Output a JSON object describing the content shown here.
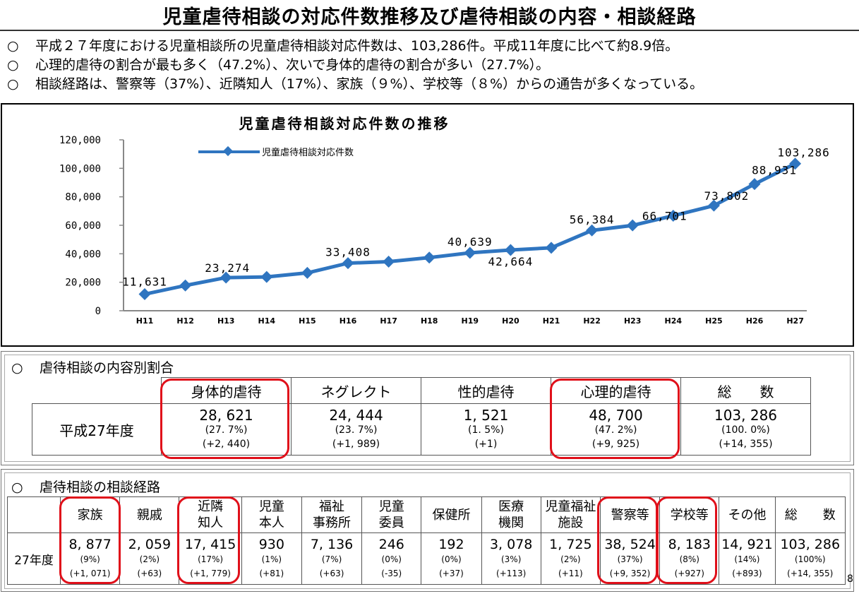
{
  "title": "児童虐待相談の対応件数推移及び虐待相談の内容・相談経路",
  "bullets": [
    {
      "marker": "○",
      "text": "平成２７年度における児童相談所の児童虐待相談対応件数は、103,286件。平成11年度に比べて約8.9倍。"
    },
    {
      "marker": "○",
      "text": "心理的虐待の割合が最も多く（47.2%）、次いで身体的虐待の割合が多い（27.7%）。"
    },
    {
      "marker": "○",
      "text": "相談経路は、警察等（37%）、近隣知人（17%）、家族（９%）、学校等（８%）からの通告が多くなっている。"
    }
  ],
  "chart_data": {
    "type": "line",
    "title": "児童虐待相談対応件数の推移",
    "categories": [
      "H11",
      "H12",
      "H13",
      "H14",
      "H15",
      "H16",
      "H17",
      "H18",
      "H19",
      "H20",
      "H21",
      "H22",
      "H23",
      "H24",
      "H25",
      "H26",
      "H27"
    ],
    "series": [
      {
        "name": "児童虐待相談対応件数",
        "values": [
          11631,
          17725,
          23274,
          23738,
          26569,
          33408,
          34472,
          37323,
          40639,
          42664,
          44211,
          56384,
          59919,
          66701,
          73802,
          88931,
          103286
        ]
      }
    ],
    "data_labels": [
      {
        "index": 0,
        "text": "11,631"
      },
      {
        "index": 2,
        "text": "23,274"
      },
      {
        "index": 5,
        "text": "33,408"
      },
      {
        "index": 8,
        "text": "40,639"
      },
      {
        "index": 9,
        "text": "42,664"
      },
      {
        "index": 11,
        "text": "56,384"
      },
      {
        "index": 13,
        "text": "66,701"
      },
      {
        "index": 14,
        "text": "73,802"
      },
      {
        "index": 15,
        "text": "88,931"
      },
      {
        "index": 16,
        "text": "103,286"
      }
    ],
    "yticks": [
      "0",
      "20,000",
      "40,000",
      "60,000",
      "80,000",
      "100,000",
      "120,000"
    ],
    "ylim": [
      0,
      120000
    ],
    "xlabel": "",
    "ylabel": "",
    "legend": "top-left",
    "grid": false,
    "color": "#2f75c0"
  },
  "content_section": {
    "marker": "○",
    "title": "虐待相談の内容別割合",
    "row_label": "平成27年度",
    "columns": [
      {
        "header": "身体的虐待",
        "value": "28, 621",
        "pct": "(27. 7%)",
        "diff": "(+2, 440)"
      },
      {
        "header": "ネグレクト",
        "value": "24, 444",
        "pct": "(23. 7%)",
        "diff": "(+1, 989)"
      },
      {
        "header": "性的虐待",
        "value": "1, 521",
        "pct": "(1. 5%)",
        "diff": "(+1)"
      },
      {
        "header": "心理的虐待",
        "value": "48, 700",
        "pct": "(47. 2%)",
        "diff": "(+9, 925)"
      },
      {
        "header": "総　　数",
        "value": "103, 286",
        "pct": "(100. 0%)",
        "diff": "(+14, 355)"
      }
    ]
  },
  "route_section": {
    "marker": "○",
    "title": "虐待相談の相談経路",
    "row_label": "27年度",
    "columns": [
      {
        "header": "家族",
        "value": "8, 877",
        "pct": "(9%)",
        "diff": "(+1, 071)"
      },
      {
        "header": "親戚",
        "value": "2, 059",
        "pct": "(2%)",
        "diff": "(+63)"
      },
      {
        "header": "近隣\n知人",
        "value": "17, 415",
        "pct": "(17%)",
        "diff": "(+1, 779)"
      },
      {
        "header": "児童\n本人",
        "value": "930",
        "pct": "(1%)",
        "diff": "(+81)"
      },
      {
        "header": "福祉\n事務所",
        "value": "7, 136",
        "pct": "(7%)",
        "diff": "(+63)"
      },
      {
        "header": "児童\n委員",
        "value": "246",
        "pct": "(0%)",
        "diff": "(-35)"
      },
      {
        "header": "保健所",
        "value": "192",
        "pct": "(0%)",
        "diff": "(+37)"
      },
      {
        "header": "医療\n機関",
        "value": "3, 078",
        "pct": "(3%)",
        "diff": "(+113)"
      },
      {
        "header": "児童福祉\n施設",
        "value": "1, 725",
        "pct": "(2%)",
        "diff": "(+11)"
      },
      {
        "header": "警察等",
        "value": "38, 524",
        "pct": "(37%)",
        "diff": "(+9, 352)"
      },
      {
        "header": "学校等",
        "value": "8, 183",
        "pct": "(8%)",
        "diff": "(+927)"
      },
      {
        "header": "その他",
        "value": "14, 921",
        "pct": "(14%)",
        "diff": "(+893)"
      },
      {
        "header": "総　　数",
        "value": "103, 286",
        "pct": "(100%)",
        "diff": "(+14, 355)"
      }
    ]
  },
  "highlight_color": "#e0101a",
  "page_number": "8"
}
